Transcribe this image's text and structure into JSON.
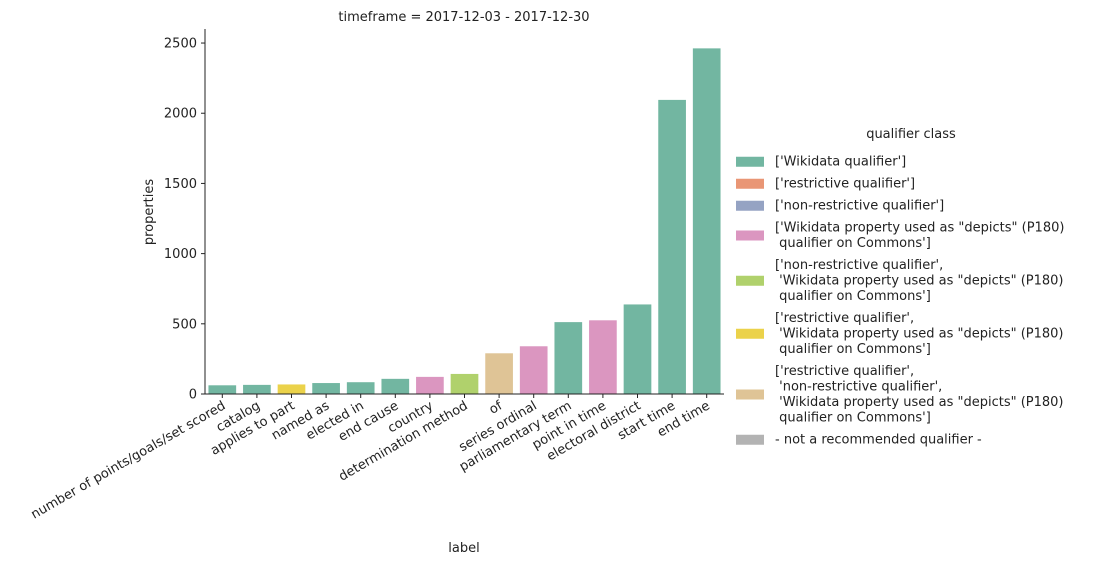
{
  "chart_data": {
    "type": "bar",
    "title": "timeframe = 2017-12-03 - 2017-12-30",
    "xlabel": "label",
    "ylabel": "properties",
    "ylim": [
      0,
      2600
    ],
    "yticks": [
      0,
      500,
      1000,
      1500,
      2000,
      2500
    ],
    "grid": false,
    "legend_position": "right",
    "legend": {
      "title": "qualifier class",
      "entries": [
        {
          "label": "['Wikidata qualifier']",
          "color": "#72b6a1"
        },
        {
          "label": "['restrictive qualifier']",
          "color": "#e99675"
        },
        {
          "label": "['non-restrictive qualifier']",
          "color": "#95a3c3"
        },
        {
          "label": "['Wikidata property used as \"depicts\" (P180)\n qualifier on Commons']",
          "color": "#db96c0"
        },
        {
          "label": "['non-restrictive qualifier',\n 'Wikidata property used as \"depicts\" (P180)\n qualifier on Commons']",
          "color": "#b0d16c"
        },
        {
          "label": "['restrictive qualifier',\n 'Wikidata property used as \"depicts\" (P180)\n qualifier on Commons']",
          "color": "#ebd24a"
        },
        {
          "label": "['restrictive qualifier',\n 'non-restrictive qualifier',\n 'Wikidata property used as \"depicts\" (P180)\n qualifier on Commons']",
          "color": "#dfc496"
        },
        {
          "label": "- not a recommended qualifier -",
          "color": "#b3b3b3"
        }
      ]
    },
    "categories": [
      "number of points/goals/set scored",
      "catalog",
      "applies to part",
      "named as",
      "elected in",
      "end cause",
      "country",
      "determination method",
      "of",
      "series ordinal",
      "parliamentary term",
      "point in time",
      "electoral district",
      "start time",
      "end time"
    ],
    "values": [
      62,
      65,
      68,
      78,
      84,
      108,
      122,
      143,
      290,
      340,
      512,
      525,
      638,
      2095,
      2462
    ],
    "bar_colors": [
      "#72b6a1",
      "#72b6a1",
      "#ebd24a",
      "#72b6a1",
      "#72b6a1",
      "#72b6a1",
      "#db96c0",
      "#b0d16c",
      "#dfc496",
      "#db96c0",
      "#72b6a1",
      "#db96c0",
      "#72b6a1",
      "#72b6a1",
      "#72b6a1"
    ]
  }
}
